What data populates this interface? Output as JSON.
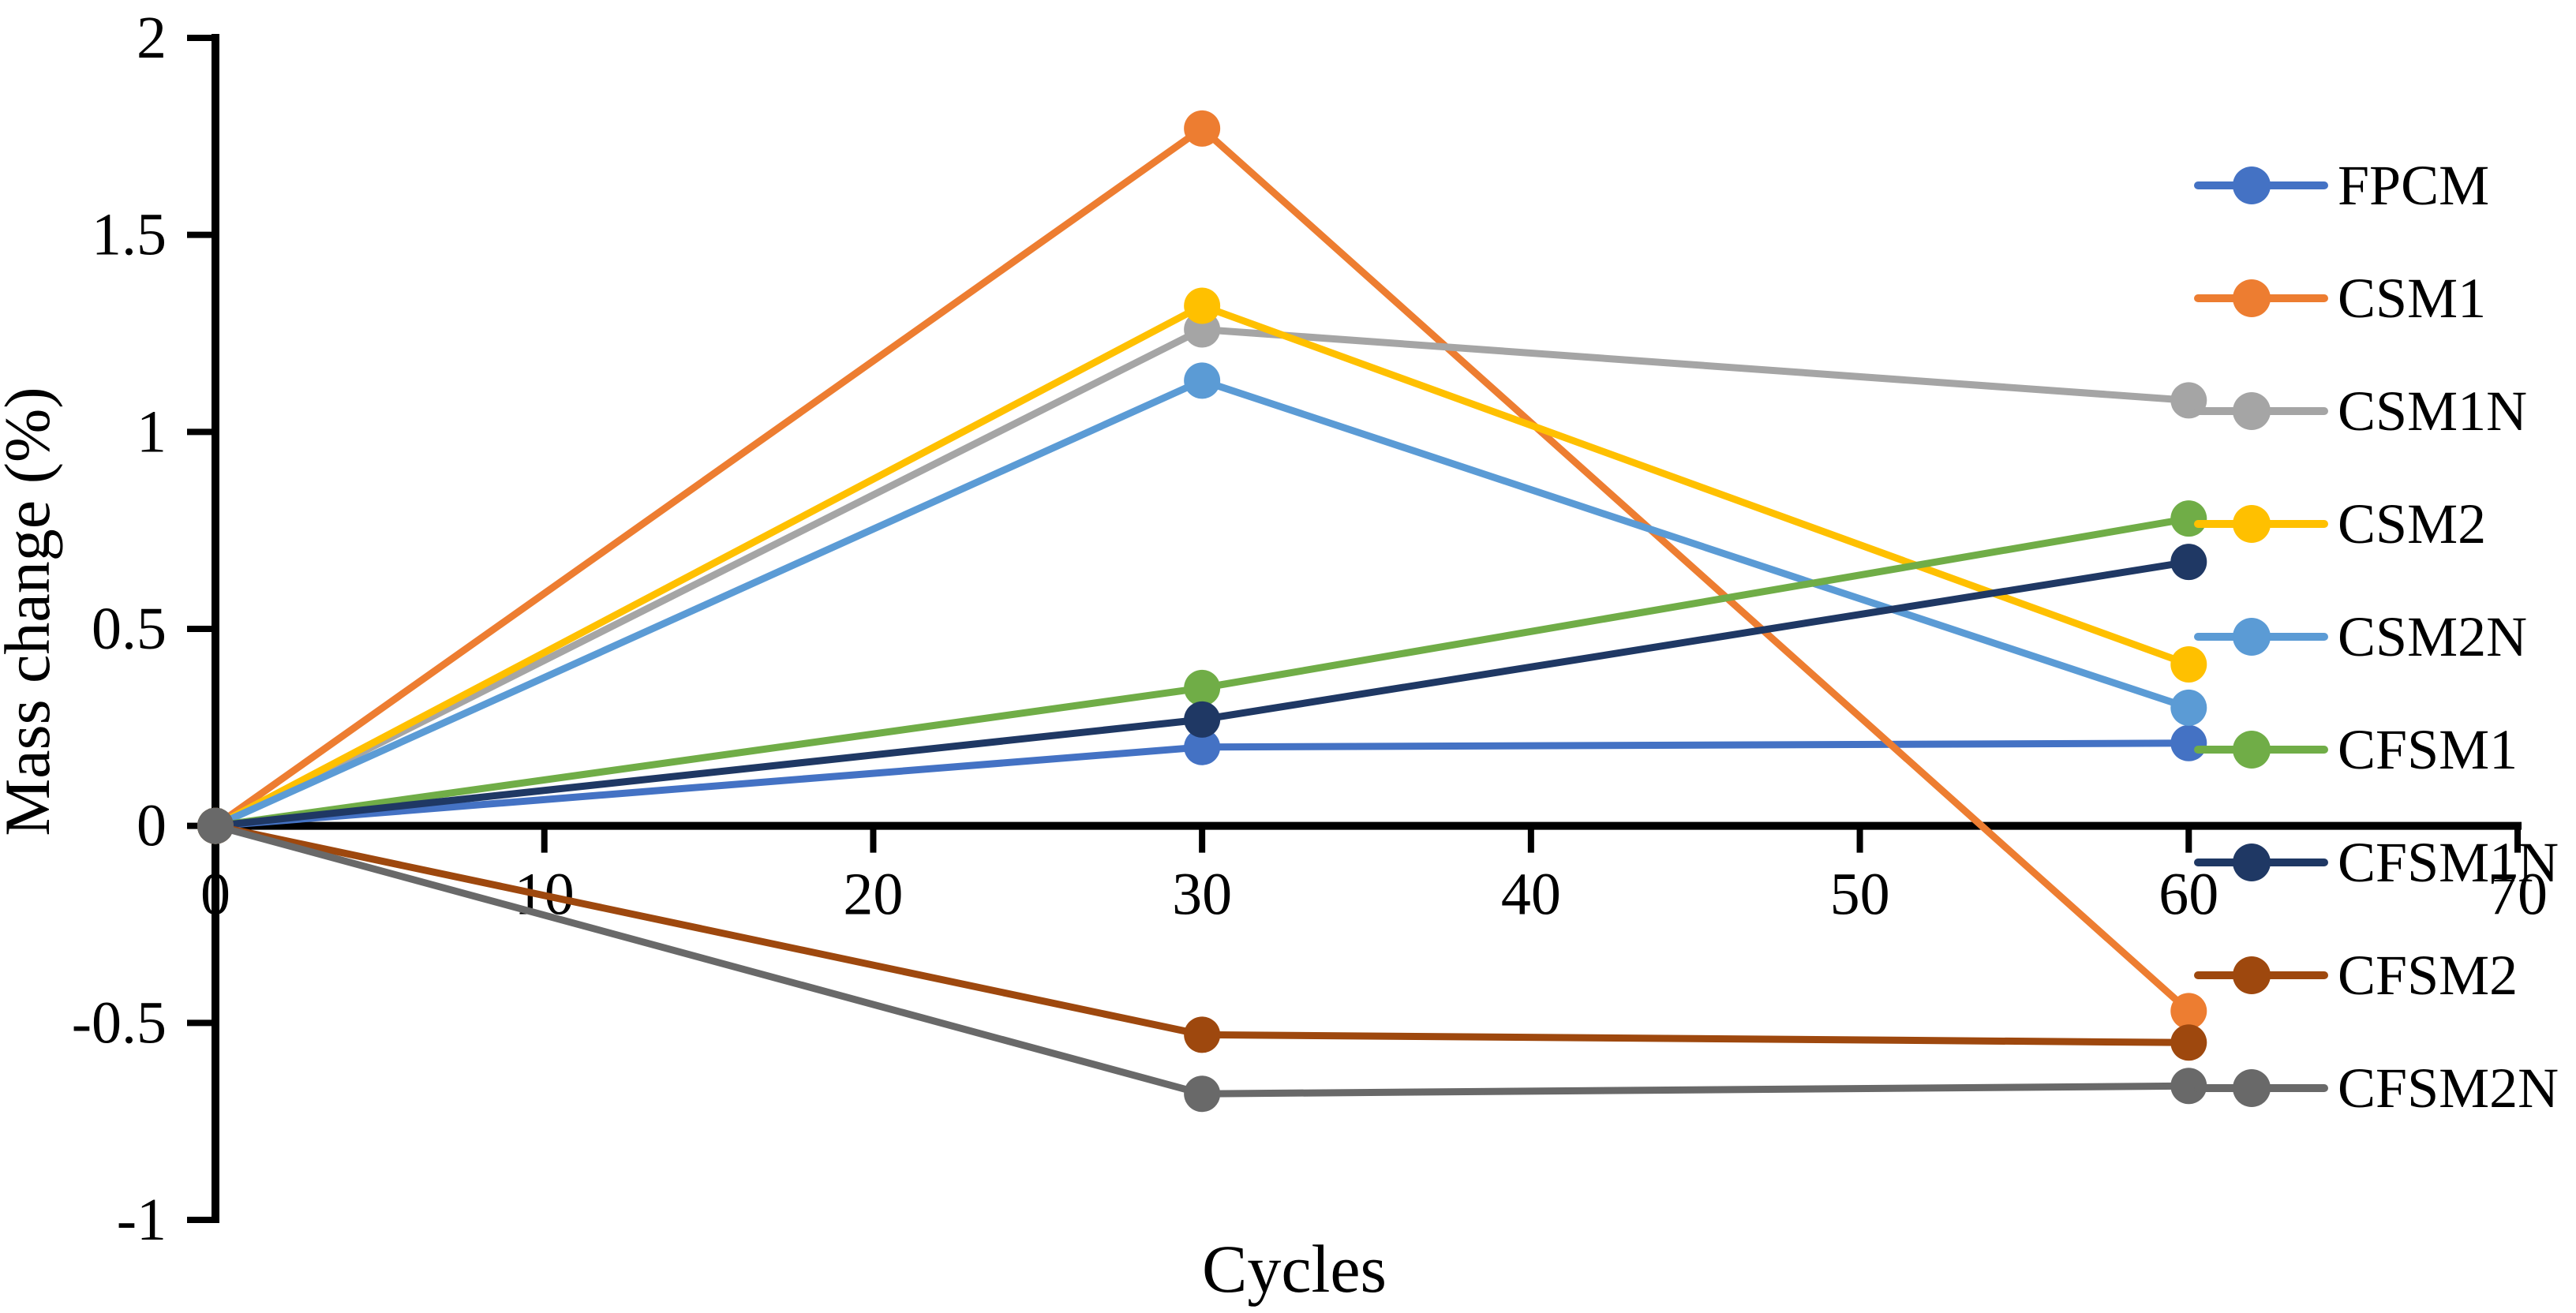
{
  "figure": {
    "background": "#ffffff",
    "axis_color": "#000000"
  },
  "chart_data": {
    "type": "line",
    "title": "",
    "xlabel": "Cycles",
    "ylabel": "Mass change (%)",
    "x": [
      0,
      30,
      60
    ],
    "xlim": [
      0,
      70
    ],
    "ylim": [
      -1,
      2
    ],
    "xticks": [
      0,
      10,
      20,
      30,
      40,
      50,
      60,
      70
    ],
    "xtick_labels": [
      "0",
      "10",
      "20",
      "30",
      "40",
      "50",
      "60",
      "70"
    ],
    "yticks": [
      2,
      1.5,
      1,
      0.5,
      0,
      -0.5,
      -1
    ],
    "ytick_labels": [
      "2",
      "1.5",
      "1",
      "0.5",
      "0",
      "-0.5",
      "-1"
    ],
    "grid": false,
    "legend_position": "right",
    "marker": "circle",
    "series": [
      {
        "name": "FPCM",
        "color": "#4472C4",
        "values": [
          0,
          0.2,
          0.21
        ]
      },
      {
        "name": "CSM1",
        "color": "#ED7D31",
        "values": [
          0,
          1.77,
          -0.47
        ]
      },
      {
        "name": "CSM1N",
        "color": "#A5A5A5",
        "values": [
          0,
          1.26,
          1.08
        ]
      },
      {
        "name": "CSM2",
        "color": "#FFC000",
        "values": [
          0,
          1.32,
          0.41
        ]
      },
      {
        "name": "CSM2N",
        "color": "#5B9BD5",
        "values": [
          0,
          1.13,
          0.3
        ]
      },
      {
        "name": "CFSM1",
        "color": "#70AD47",
        "values": [
          0,
          0.35,
          0.78
        ]
      },
      {
        "name": "CFSM1N",
        "color": "#1F3864",
        "values": [
          0,
          0.27,
          0.67
        ]
      },
      {
        "name": "CFSM2",
        "color": "#9E480E",
        "values": [
          0,
          -0.53,
          -0.55
        ]
      },
      {
        "name": "CFSM2N",
        "color": "#696969",
        "values": [
          0,
          -0.68,
          -0.66
        ]
      }
    ]
  }
}
